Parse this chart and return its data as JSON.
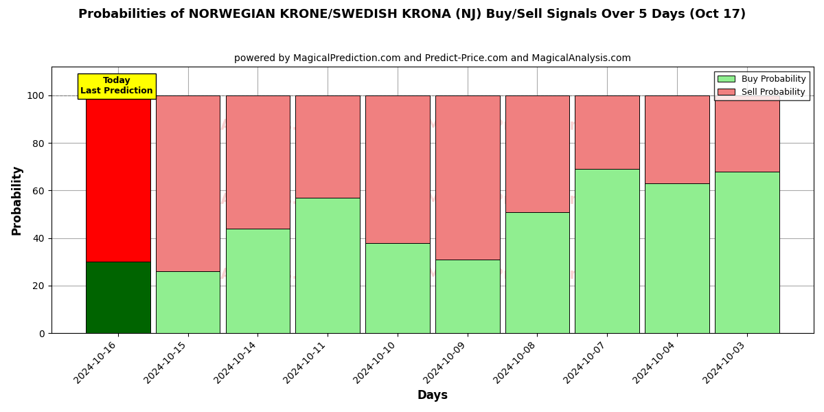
{
  "title": "Probabilities of NORWEGIAN KRONE/SWEDISH KRONA (NJ) Buy/Sell Signals Over 5 Days (Oct 17)",
  "subtitle": "powered by MagicalPrediction.com and Predict-Price.com and MagicalAnalysis.com",
  "xlabel": "Days",
  "ylabel": "Probability",
  "categories": [
    "2024-10-16",
    "2024-10-15",
    "2024-10-14",
    "2024-10-11",
    "2024-10-10",
    "2024-10-09",
    "2024-10-08",
    "2024-10-07",
    "2024-10-04",
    "2024-10-03"
  ],
  "buy_values": [
    30,
    26,
    44,
    57,
    38,
    31,
    51,
    69,
    63,
    68
  ],
  "sell_values": [
    70,
    74,
    56,
    43,
    62,
    69,
    49,
    31,
    37,
    32
  ],
  "today_index": 0,
  "buy_color_today": "#006400",
  "sell_color_today": "#FF0000",
  "buy_color_normal": "#90EE90",
  "sell_color_normal": "#F08080",
  "today_label_bg": "#FFFF00",
  "today_label_text": "Today\nLast Prediction",
  "legend_buy_label": "Buy Probability",
  "legend_sell_label": "Sell Probability",
  "ylim": [
    0,
    112
  ],
  "yticks": [
    0,
    20,
    40,
    60,
    80,
    100
  ],
  "background_color": "#ffffff",
  "grid_color": "#aaaaaa",
  "bar_width": 0.92,
  "watermark_rows": 3,
  "watermark_cols": 2,
  "wm_color": "#F08080",
  "wm_alpha": 0.35,
  "wm_fontsize": 16
}
